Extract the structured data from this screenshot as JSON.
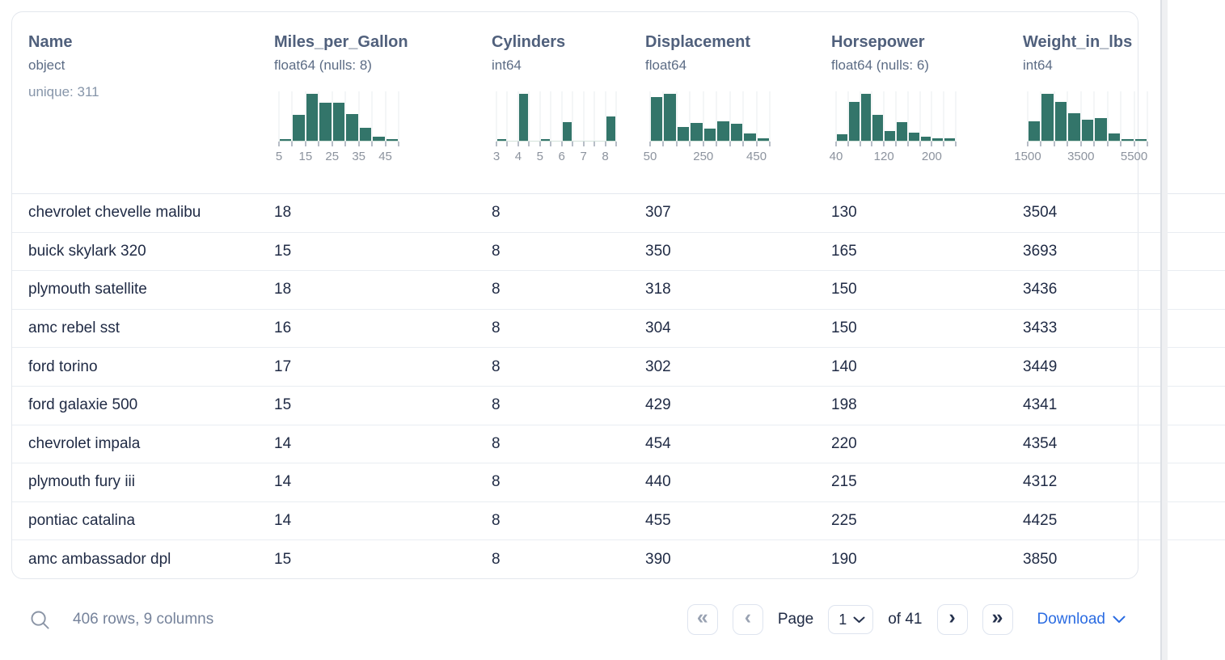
{
  "table": {
    "columns": [
      {
        "name": "Name",
        "dtype": "object",
        "extra": "unique: 311",
        "hist_index": null
      },
      {
        "name": "Miles_per_Gallon",
        "dtype": "float64 (nulls: 8)",
        "extra": null,
        "hist_index": 0
      },
      {
        "name": "Cylinders",
        "dtype": "int64",
        "extra": null,
        "hist_index": 1
      },
      {
        "name": "Displacement",
        "dtype": "float64",
        "extra": null,
        "hist_index": 2
      },
      {
        "name": "Horsepower",
        "dtype": "float64 (nulls: 6)",
        "extra": null,
        "hist_index": 3
      },
      {
        "name": "Weight_in_lbs",
        "dtype": "int64",
        "extra": null,
        "hist_index": 4
      }
    ],
    "rows": [
      [
        "chevrolet chevelle malibu",
        "18",
        "8",
        "307",
        "130",
        "3504"
      ],
      [
        "buick skylark 320",
        "15",
        "8",
        "350",
        "165",
        "3693"
      ],
      [
        "plymouth satellite",
        "18",
        "8",
        "318",
        "150",
        "3436"
      ],
      [
        "amc rebel sst",
        "16",
        "8",
        "304",
        "150",
        "3433"
      ],
      [
        "ford torino",
        "17",
        "8",
        "302",
        "140",
        "3449"
      ],
      [
        "ford galaxie 500",
        "15",
        "8",
        "429",
        "198",
        "4341"
      ],
      [
        "chevrolet impala",
        "14",
        "8",
        "454",
        "220",
        "4354"
      ],
      [
        "plymouth fury iii",
        "14",
        "8",
        "440",
        "215",
        "4312"
      ],
      [
        "pontiac catalina",
        "14",
        "8",
        "455",
        "225",
        "4425"
      ],
      [
        "amc ambassador dpl",
        "15",
        "8",
        "390",
        "190",
        "3850"
      ]
    ]
  },
  "chart_data": [
    {
      "type": "bar",
      "column": "Miles_per_Gallon",
      "bin_start": 5,
      "bin_width": 5,
      "heights": [
        0.03,
        0.55,
        1.0,
        0.81,
        0.81,
        0.57,
        0.27,
        0.09,
        0.03
      ],
      "tick_labels": [
        "5",
        "15",
        "25",
        "35",
        "45"
      ],
      "label_positions": [
        0,
        2,
        4,
        6,
        8
      ],
      "bar_color": "#33756a"
    },
    {
      "type": "bar",
      "column": "Cylinders",
      "bin_start": 3,
      "bin_width": 0.5,
      "heights": [
        0.04,
        0,
        1.0,
        0,
        0.03,
        0,
        0.4,
        0,
        0,
        0,
        0.52
      ],
      "tick_labels": [
        "3",
        "4",
        "5",
        "6",
        "7",
        "8"
      ],
      "label_positions": [
        0,
        2,
        4,
        6,
        8,
        10
      ],
      "bar_color": "#33756a"
    },
    {
      "type": "bar",
      "column": "Displacement",
      "bin_start": 50,
      "bin_width": 50,
      "heights": [
        0.93,
        1.0,
        0.3,
        0.38,
        0.26,
        0.42,
        0.36,
        0.16,
        0.05
      ],
      "tick_labels": [
        "50",
        "250",
        "450"
      ],
      "label_positions": [
        0,
        4,
        8
      ],
      "bar_color": "#33756a"
    },
    {
      "type": "bar",
      "column": "Horsepower",
      "bin_start": 40,
      "bin_width": 20,
      "heights": [
        0.14,
        0.82,
        1.0,
        0.55,
        0.2,
        0.4,
        0.18,
        0.09,
        0.06,
        0.05
      ],
      "tick_labels": [
        "40",
        "120",
        "200"
      ],
      "label_positions": [
        0,
        4,
        8
      ],
      "bar_color": "#33756a"
    },
    {
      "type": "bar",
      "column": "Weight_in_lbs",
      "bin_start": 1500,
      "bin_width": 500,
      "heights": [
        0.42,
        1.0,
        0.82,
        0.58,
        0.44,
        0.49,
        0.16,
        0.02,
        0.02
      ],
      "tick_labels": [
        "1500",
        "3500",
        "5500"
      ],
      "label_positions": [
        0,
        4,
        8
      ],
      "bar_color": "#33756a"
    }
  ],
  "footer": {
    "summary": "406 rows, 9 columns",
    "pagination": {
      "first_icon": "«",
      "prev_icon": "‹",
      "next_icon": "›",
      "last_icon": "»",
      "page_label": "Page",
      "page_value": "1",
      "total_label": "of 41"
    },
    "download_label": "Download"
  },
  "icons": [
    "search-icon",
    "double-chevron-left-icon",
    "chevron-left-icon",
    "chevron-down-icon",
    "chevron-right-icon",
    "double-chevron-right-icon"
  ]
}
